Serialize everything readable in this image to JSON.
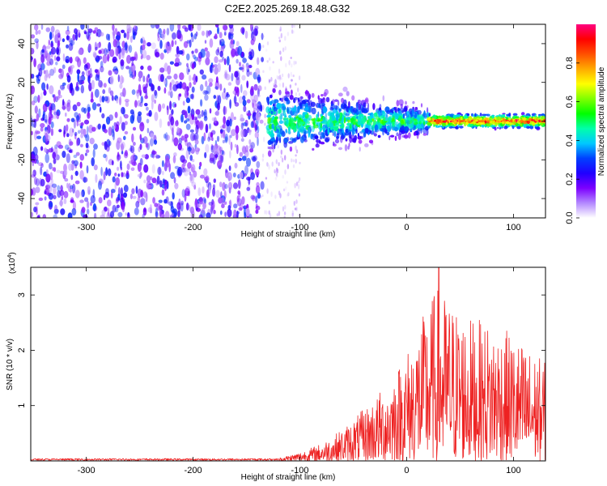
{
  "title": "C2E2.2025.269.18.48.G32",
  "chart_data": [
    {
      "type": "heatmap",
      "name": "spectrogram",
      "xlabel": "Height of straight line (km)",
      "ylabel": "Frequency (Hz)",
      "xlim": [
        -352,
        130
      ],
      "ylim": [
        -50,
        50
      ],
      "xticks": [
        -300,
        -200,
        -100,
        0,
        100
      ],
      "yticks": [
        -40,
        -20,
        0,
        20,
        40
      ],
      "colorbar": {
        "label": "Normalized spectral amplitude",
        "range": [
          0,
          1
        ],
        "ticks": [
          "0.0",
          "0.2",
          "0.4",
          "0.6",
          "0.8"
        ],
        "colormap": [
          "#ffffff",
          "#b388ff",
          "#7c00ff",
          "#2000ff",
          "#0040ff",
          "#00c8ff",
          "#00ffaa",
          "#00ff00",
          "#80ff00",
          "#ffff00",
          "#ffaa00",
          "#ff5000",
          "#ff0000",
          "#ff0080"
        ]
      },
      "regions": [
        {
          "x_range": [
            -352,
            -135
          ],
          "description": "broadband noise",
          "amplitude_range": [
            0.05,
            0.3
          ]
        },
        {
          "x_range": [
            -135,
            -100
          ],
          "description": "sparse scatter",
          "amplitude_range": [
            0.0,
            0.1
          ]
        },
        {
          "x_range": [
            -130,
            20
          ],
          "description": "band around 0 Hz",
          "amplitude_range": [
            0.2,
            0.55
          ],
          "bandwidth_hz": [
            8,
            20
          ]
        },
        {
          "x_range": [
            20,
            130
          ],
          "description": "narrow line at 0 Hz",
          "amplitude_range": [
            0.6,
            0.95
          ],
          "bandwidth_hz": [
            2,
            4
          ]
        }
      ]
    },
    {
      "type": "line",
      "name": "snr",
      "xlabel": "Height of straight line (km)",
      "ylabel": "SNR (10 * v/v)",
      "y_multiplier_label": "(x10",
      "y_multiplier_exp": "4",
      "xlim": [
        -352,
        130
      ],
      "ylim": [
        0,
        3.5
      ],
      "xticks": [
        -300,
        -200,
        -100,
        0,
        100
      ],
      "yticks": [
        1,
        2,
        3
      ],
      "color": "#ee2222",
      "envelope": [
        {
          "x": -352,
          "max": 0.03
        },
        {
          "x": -120,
          "max": 0.05
        },
        {
          "x": -100,
          "max": 0.15
        },
        {
          "x": -80,
          "max": 0.3
        },
        {
          "x": -60,
          "max": 0.55
        },
        {
          "x": -40,
          "max": 0.9
        },
        {
          "x": -20,
          "max": 1.3
        },
        {
          "x": 0,
          "max": 1.9
        },
        {
          "x": 28,
          "max": 3.0
        },
        {
          "x": 55,
          "max": 2.5
        },
        {
          "x": 90,
          "max": 2.3
        },
        {
          "x": 130,
          "max": 1.7
        }
      ],
      "peak": {
        "x": 30,
        "y": 3.5
      }
    }
  ]
}
